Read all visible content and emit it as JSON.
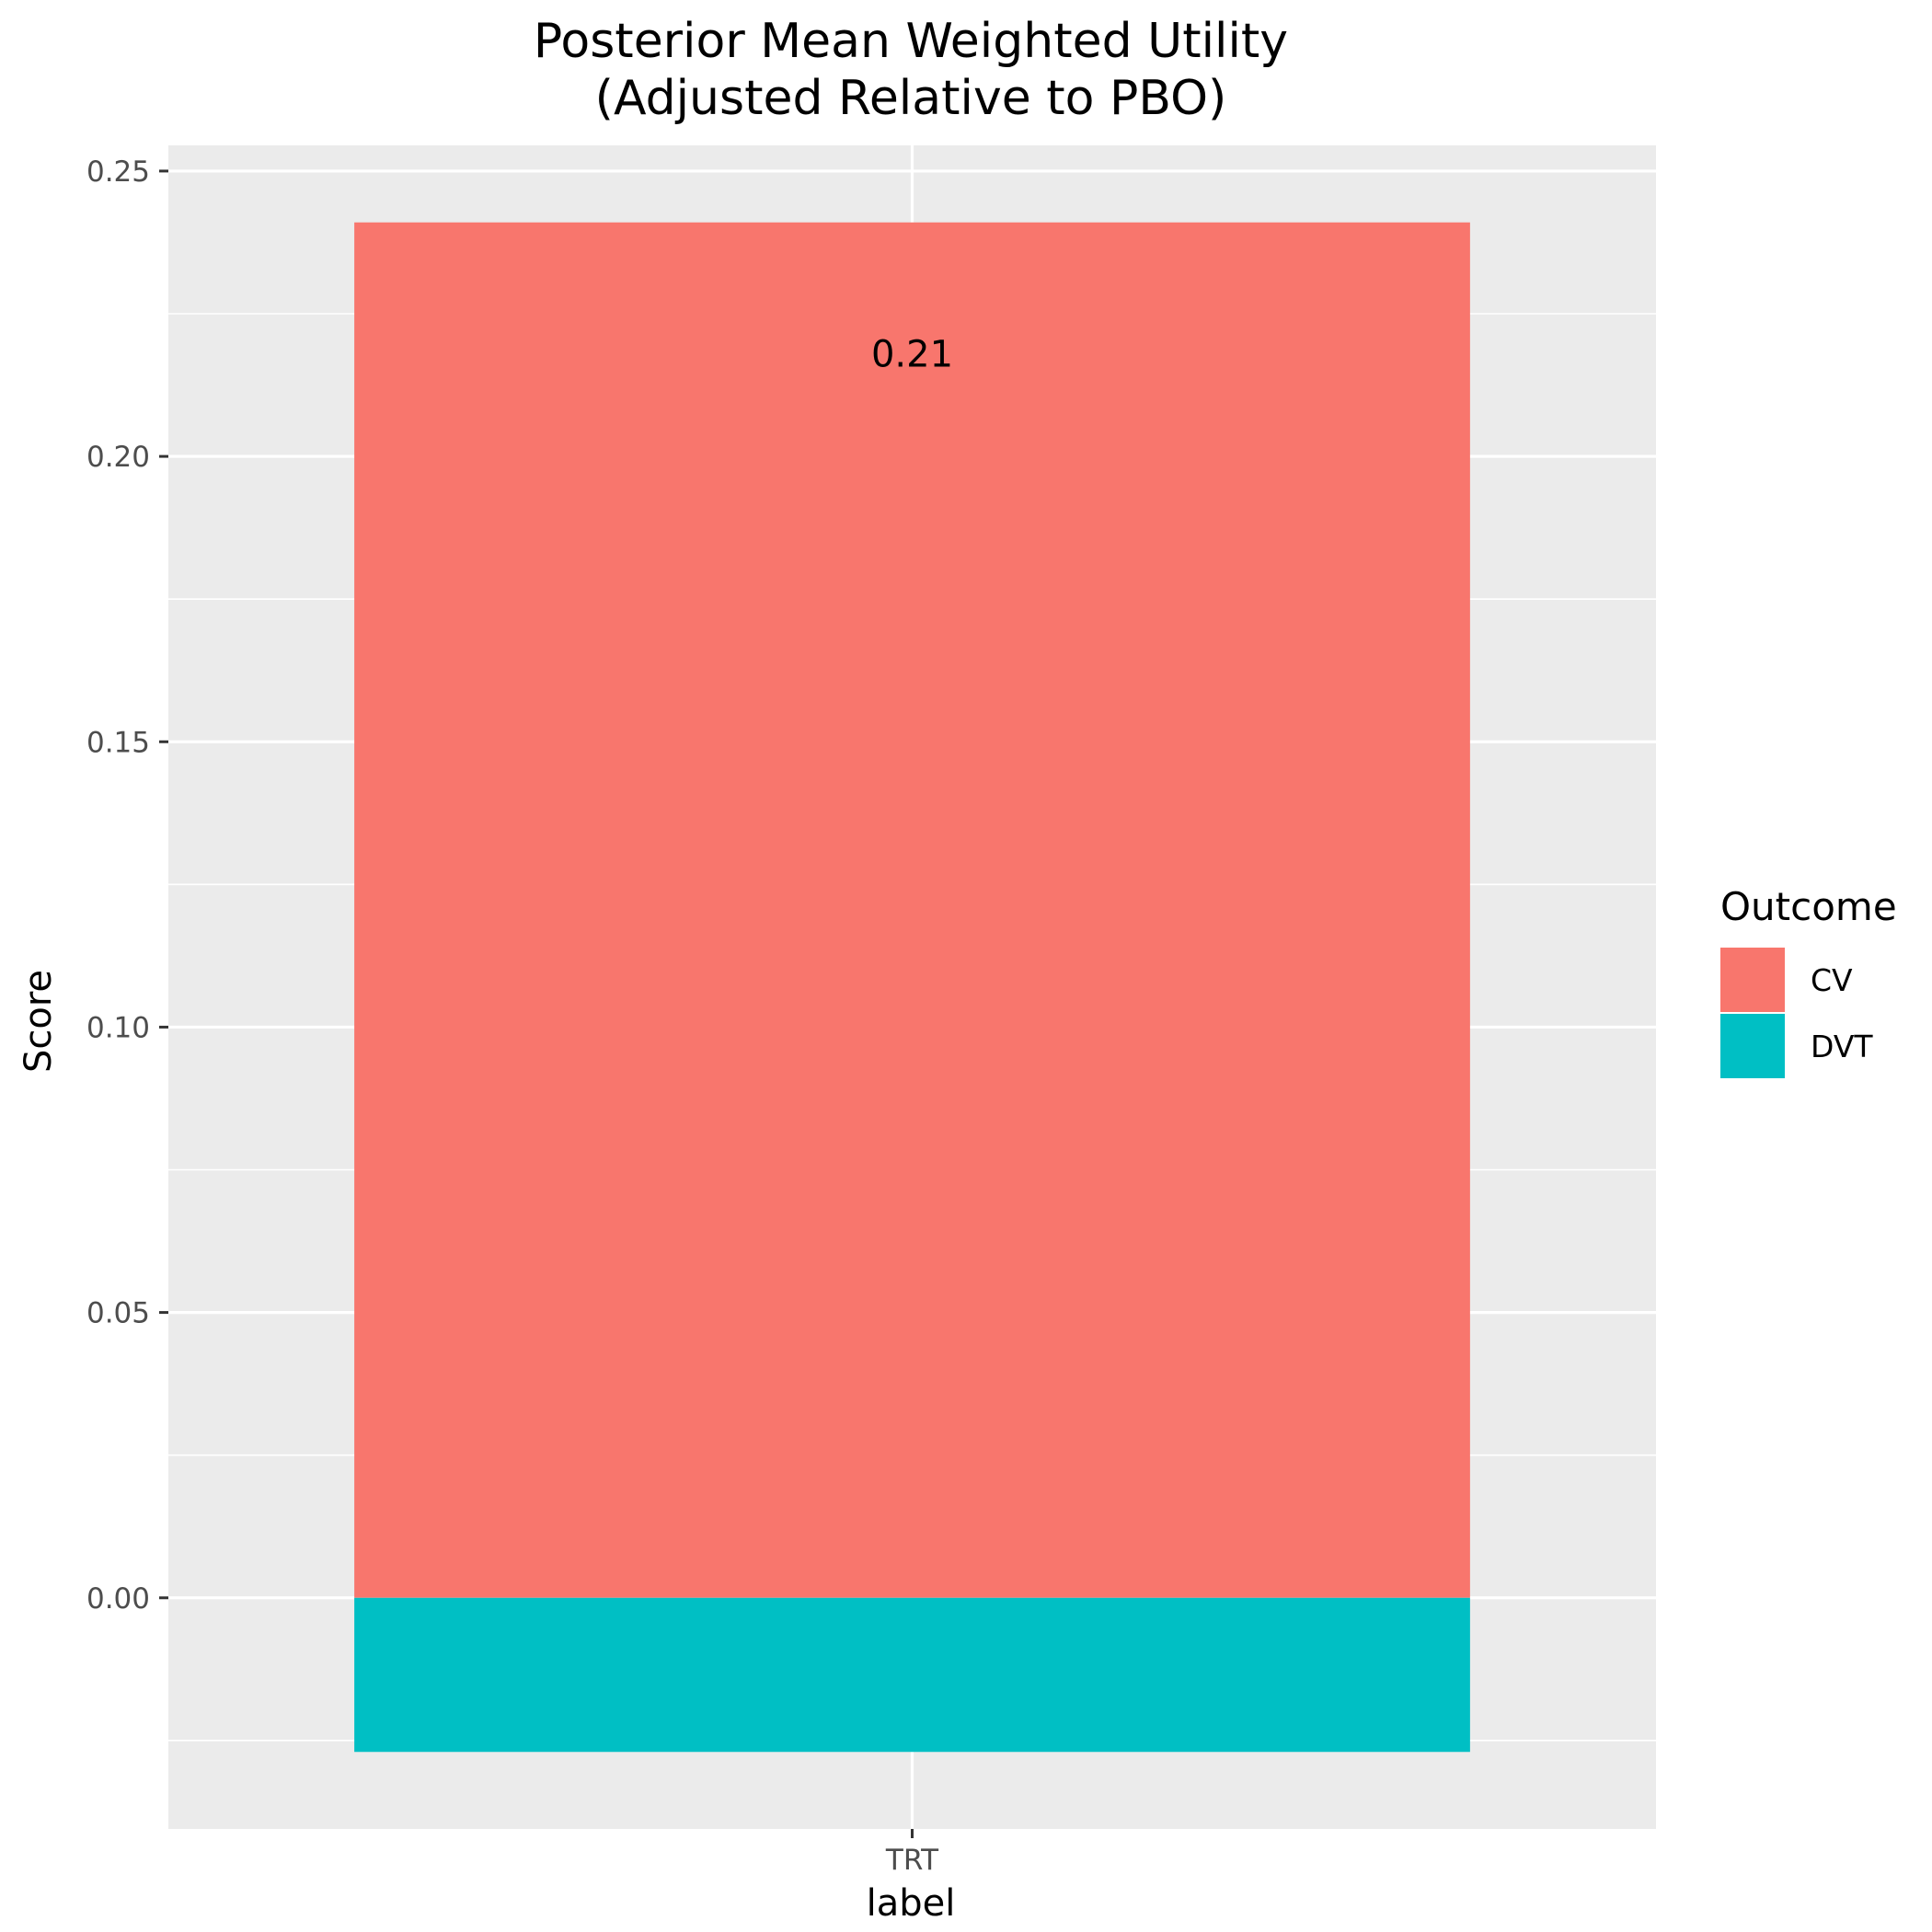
{
  "chart_data": {
    "type": "bar",
    "stacked": true,
    "title": [
      "Posterior Mean Weighted Utility",
      "(Adjusted Relative to PBO)"
    ],
    "xlabel": "label",
    "ylabel": "Score",
    "categories": [
      "TRT"
    ],
    "series": [
      {
        "name": "CV",
        "values": [
          0.241
        ],
        "color": "#F8766D"
      },
      {
        "name": "DVT",
        "values": [
          -0.027
        ],
        "color": "#00BFC4"
      }
    ],
    "ylim": [
      -0.0405,
      0.2545
    ],
    "yticks": [
      0.0,
      0.05,
      0.1,
      0.15,
      0.2,
      0.25
    ],
    "ytick_labels": [
      "0.00",
      "0.05",
      "0.10",
      "0.15",
      "0.20",
      "0.25"
    ],
    "annotations": [
      {
        "text": "0.21",
        "x": "TRT",
        "y": 0.218
      }
    ],
    "legend": {
      "title": "Outcome",
      "position": "right",
      "entries": [
        "CV",
        "DVT"
      ]
    },
    "grid": true,
    "panel_background": "#EBEBEB",
    "gridline_color": "#FFFFFF"
  }
}
